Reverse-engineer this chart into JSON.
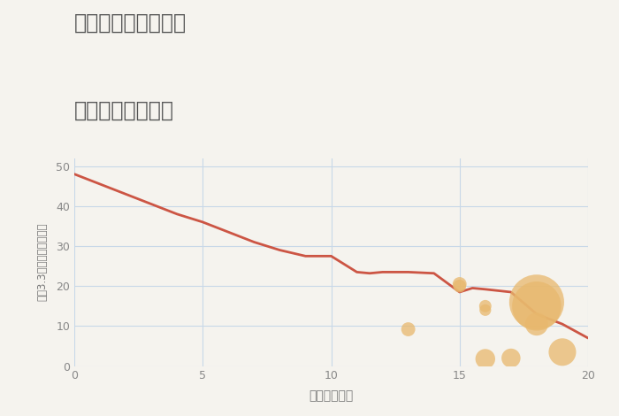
{
  "title_line1": "愛知県あま市中橋の",
  "title_line2": "駅距離別土地価格",
  "xlabel": "駅距離（分）",
  "ylabel": "坪（3.3㎡）単価（万円）",
  "bg_color": "#f5f3ee",
  "plot_bg_color": "#f5f3ee",
  "line_color": "#cc5544",
  "line_x": [
    0,
    1,
    2,
    3,
    4,
    5,
    6,
    7,
    8,
    9,
    10,
    11,
    11.5,
    12,
    13,
    14,
    15,
    15.5,
    16,
    17,
    18,
    19,
    20
  ],
  "line_y": [
    48,
    45.5,
    43,
    40.5,
    38,
    36,
    33.5,
    31,
    29,
    27.5,
    27.5,
    23.5,
    23.2,
    23.5,
    23.5,
    23.2,
    18.5,
    19.5,
    19.2,
    18.5,
    13.0,
    10.5,
    7.0
  ],
  "scatter_x": [
    13,
    15,
    15,
    16,
    16,
    16,
    17,
    18,
    18,
    18,
    19
  ],
  "scatter_y": [
    9.2,
    20.5,
    20.0,
    15.0,
    14.0,
    1.8,
    2.0,
    16.0,
    15.0,
    10.5,
    3.5
  ],
  "scatter_size": [
    130,
    130,
    110,
    100,
    90,
    260,
    240,
    2000,
    1600,
    350,
    500
  ],
  "scatter_color": "#e8b86d",
  "scatter_alpha": 0.75,
  "xlim": [
    0,
    20
  ],
  "ylim": [
    0,
    52
  ],
  "xticks": [
    0,
    5,
    10,
    15,
    20
  ],
  "yticks": [
    0,
    10,
    20,
    30,
    40,
    50
  ],
  "grid_color": "#c8d8e8",
  "title_color": "#555555",
  "label_color": "#777777",
  "tick_color": "#888888",
  "annotation_color": "#88aacc"
}
